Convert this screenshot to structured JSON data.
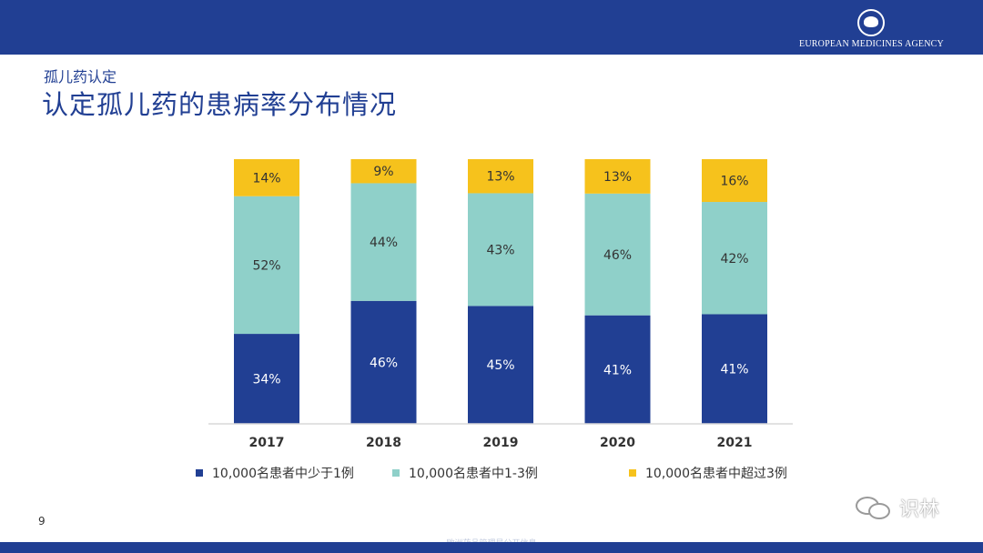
{
  "header": {
    "agency_name": "EUROPEAN MEDICINES AGENCY",
    "subtitle": "孤儿药认定",
    "title": "认定孤儿药的患病率分布情况"
  },
  "chart_data": {
    "type": "bar",
    "stacked": true,
    "normalized_percent": true,
    "title": "",
    "xlabel": "",
    "ylabel": "",
    "categories": [
      "2017",
      "2018",
      "2019",
      "2020",
      "2021"
    ],
    "series": [
      {
        "name": "10,000名患者中少于1例",
        "values": [
          34,
          46,
          45,
          41,
          41
        ],
        "color": "#213f93",
        "label_color": "#ffffff"
      },
      {
        "name": "10,000名患者中1-3例",
        "values": [
          52,
          44,
          43,
          46,
          42
        ],
        "color": "#8fd0c9",
        "label_color": "#333333"
      },
      {
        "name": "10,000名患者中超过3例",
        "values": [
          14,
          9,
          13,
          13,
          16
        ],
        "color": "#f6c21c",
        "label_color": "#333333"
      }
    ],
    "value_suffix": "%",
    "legend_position": "bottom",
    "grid": false
  },
  "footer": {
    "page_number": "9",
    "text": "欧洲药品管理局公开信息"
  },
  "watermark": {
    "text": "识林",
    "icon": "wechat-icon"
  }
}
